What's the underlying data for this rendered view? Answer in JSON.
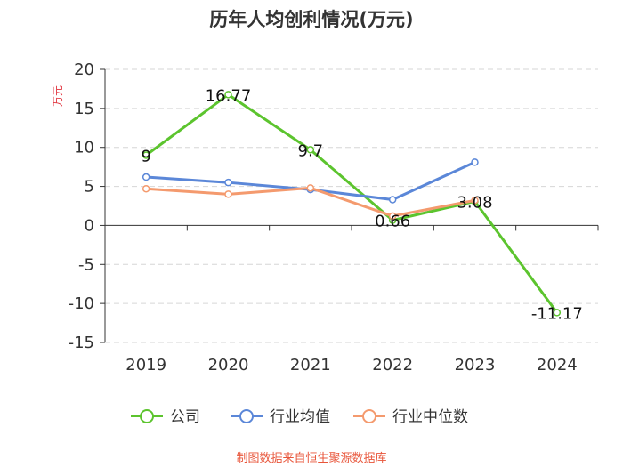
{
  "chart_data": {
    "type": "line",
    "title": "历年人均创利情况(万元)",
    "ylabel": "万元",
    "categories": [
      "2019",
      "2020",
      "2021",
      "2022",
      "2023",
      "2024"
    ],
    "ylim": [
      -15,
      20
    ],
    "yticks": [
      20,
      15,
      10,
      5,
      0,
      -5,
      -10,
      -15
    ],
    "grid": true,
    "legend_position": "bottom",
    "series": [
      {
        "name": "公司",
        "color": "#5cc42e",
        "values": [
          9,
          16.77,
          9.7,
          0.66,
          3.08,
          -11.17
        ],
        "labels": [
          "9",
          "16.77",
          "9.7",
          "0.66",
          "3.08",
          "-11.17"
        ]
      },
      {
        "name": "行业均值",
        "color": "#5b87d8",
        "values": [
          6.2,
          5.5,
          4.6,
          3.3,
          8.1,
          null
        ]
      },
      {
        "name": "行业中位数",
        "color": "#f49a6e",
        "values": [
          4.7,
          4.0,
          4.8,
          1.2,
          3.2,
          null
        ]
      }
    ]
  },
  "footer": {
    "source": "制图数据来自恒生聚源数据库"
  }
}
